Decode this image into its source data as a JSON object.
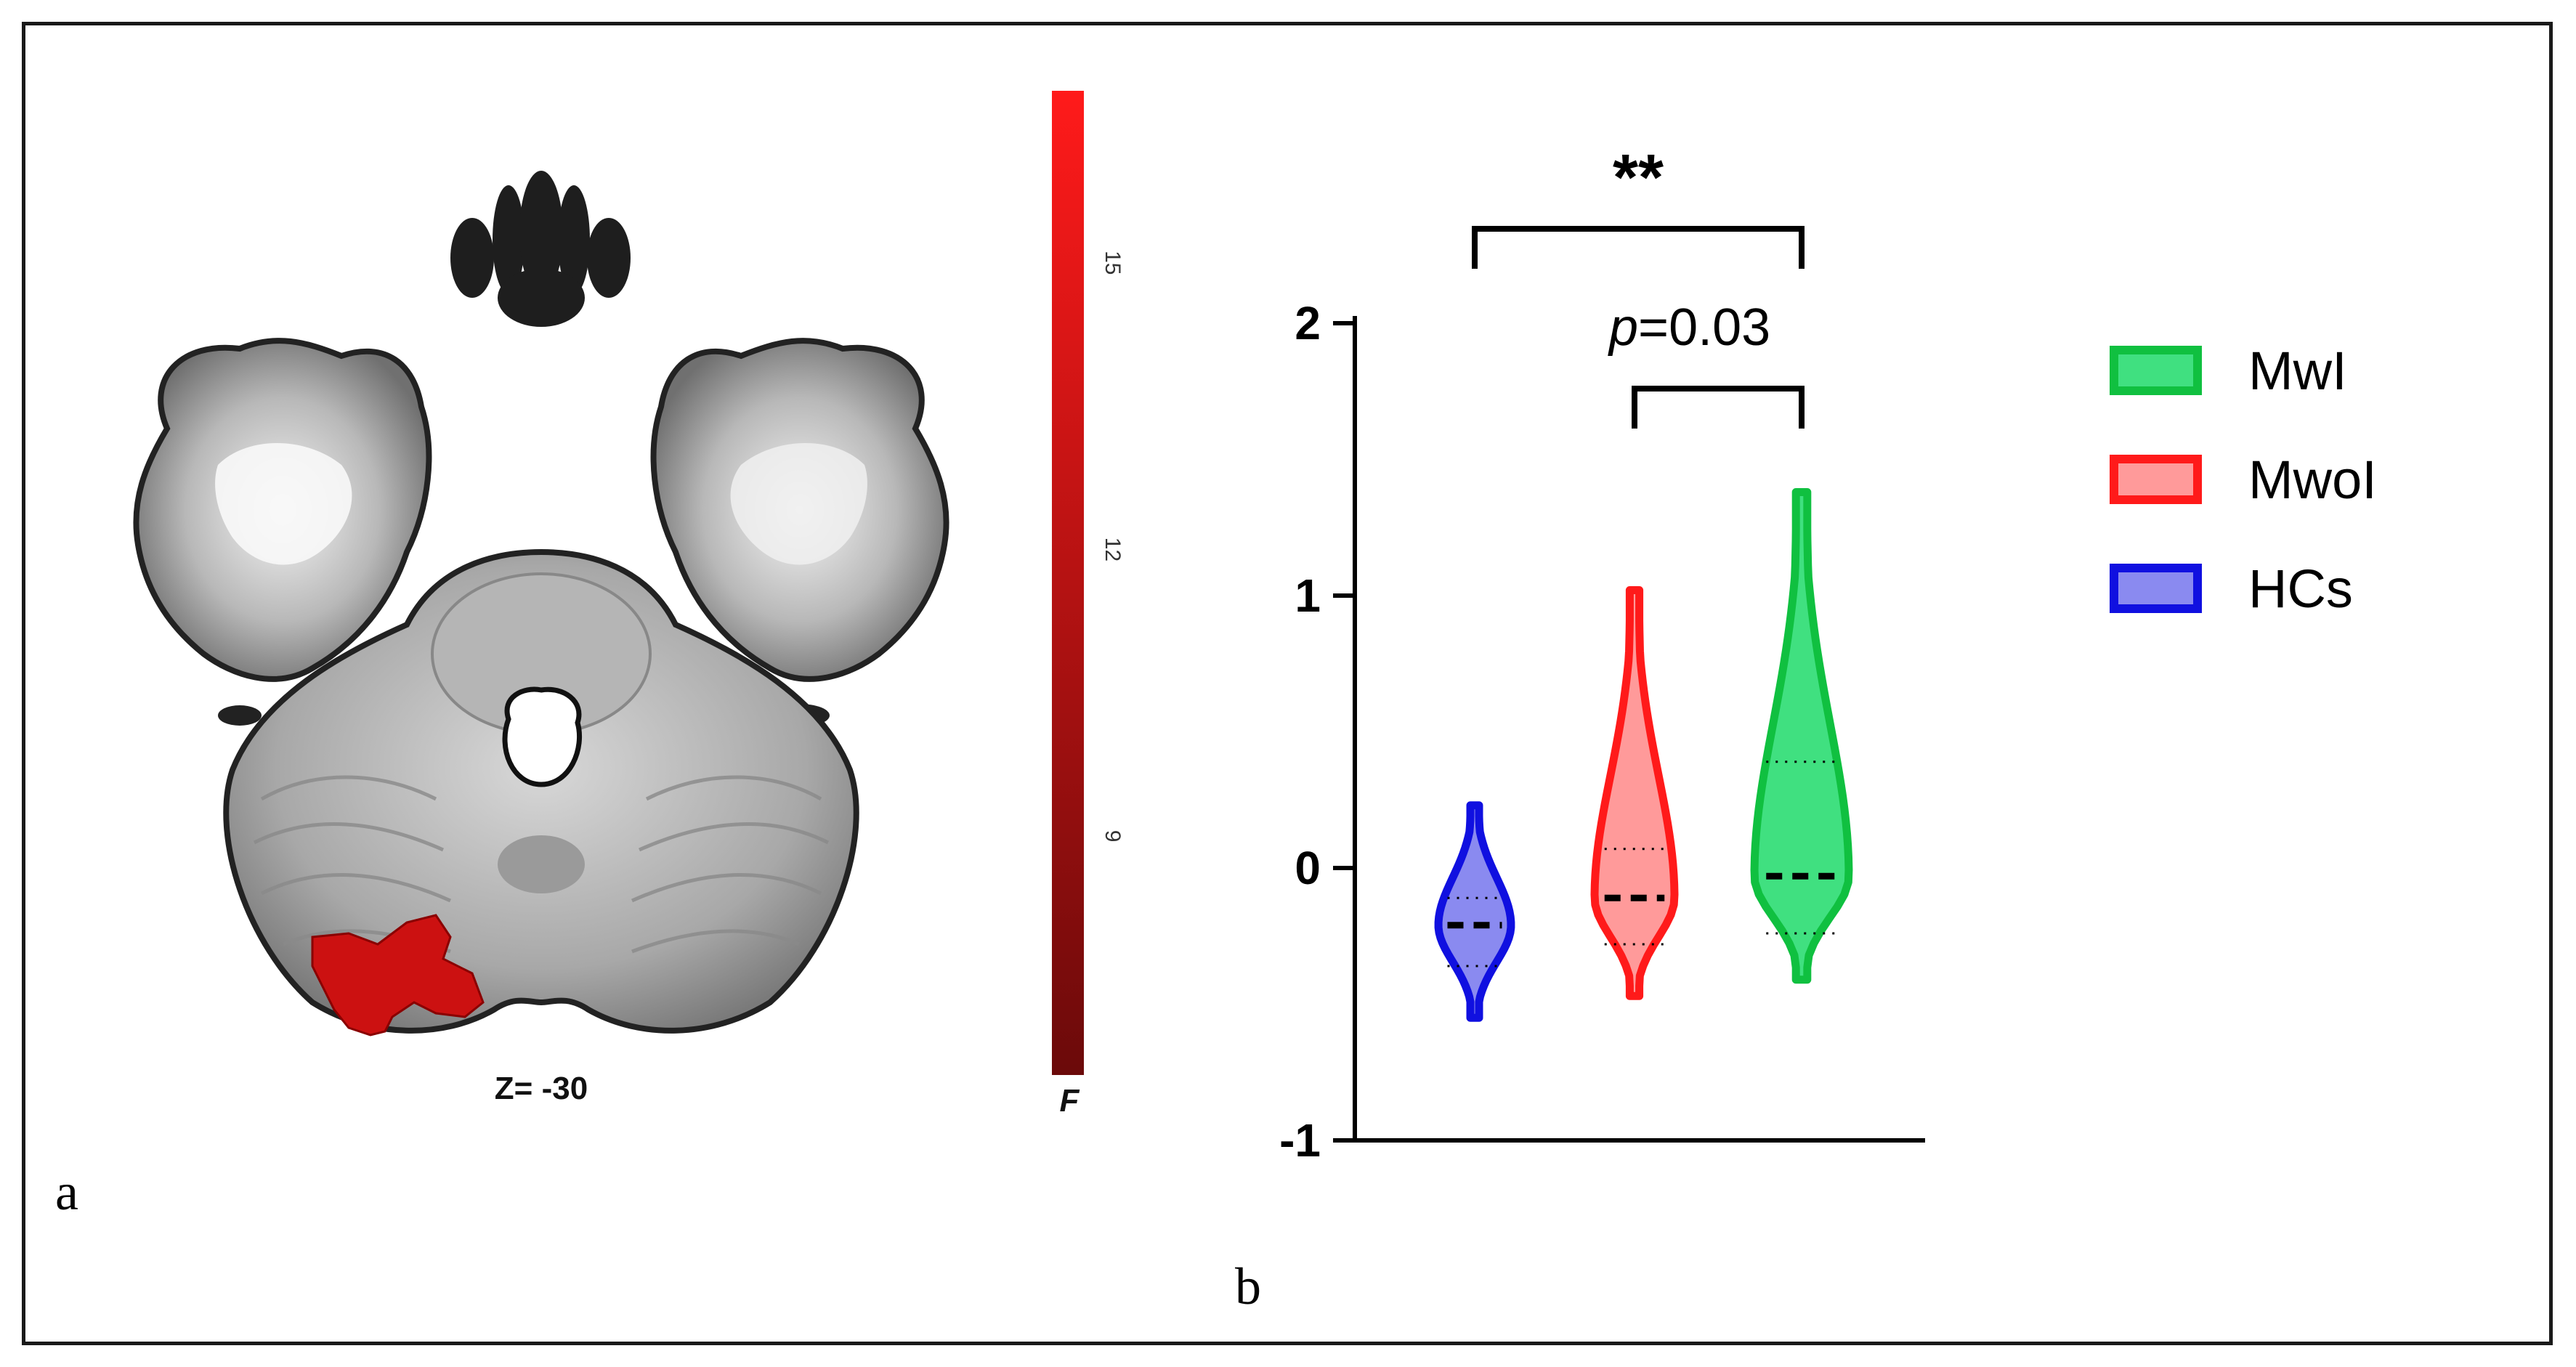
{
  "panel_a": {
    "letter": "a",
    "slice_label": "Z= -30",
    "colorbar": {
      "label": "F",
      "ticks": [
        {
          "value": 9,
          "label": "9"
        },
        {
          "value": 12,
          "label": "12"
        },
        {
          "value": 15,
          "label": "15"
        }
      ],
      "range": [
        6.5,
        16.8
      ],
      "color_low": "#6b0a0a",
      "color_high": "#ff1a1a"
    },
    "cluster_color": "#cc1111"
  },
  "panel_b": {
    "letter": "b",
    "annotations": {
      "sig_stars": "**",
      "p_symbol": "p",
      "p_text": "=0.03"
    }
  },
  "chart_data": {
    "type": "violin",
    "ylim": [
      -1,
      2
    ],
    "yticks": [
      {
        "value": 2,
        "label": "2"
      },
      {
        "value": 1,
        "label": "1"
      },
      {
        "value": 0,
        "label": "0"
      },
      {
        "value": -1,
        "label": "-1"
      }
    ],
    "legend_position": "right",
    "series": [
      {
        "name": "HCs",
        "color": "#1010e0",
        "fill": "#8a8af0",
        "min": -0.55,
        "max": 0.23,
        "median": -0.21,
        "q1": -0.36,
        "q3": -0.11
      },
      {
        "name": "MwoI",
        "color": "#ff1a1a",
        "fill": "#ff9a9a",
        "min": -0.47,
        "max": 1.02,
        "median": -0.11,
        "q1": -0.28,
        "q3": 0.07
      },
      {
        "name": "MwI",
        "color": "#10c040",
        "fill": "#40e080",
        "min": -0.41,
        "max": 1.38,
        "median": -0.03,
        "q1": -0.24,
        "q3": 0.39
      }
    ],
    "legend_order": [
      "MwI",
      "MwoI",
      "HCs"
    ],
    "comparisons": [
      {
        "from": "HCs",
        "to": "MwI",
        "label": "**"
      },
      {
        "from": "MwoI",
        "to": "MwI",
        "label": "p=0.03"
      }
    ]
  }
}
